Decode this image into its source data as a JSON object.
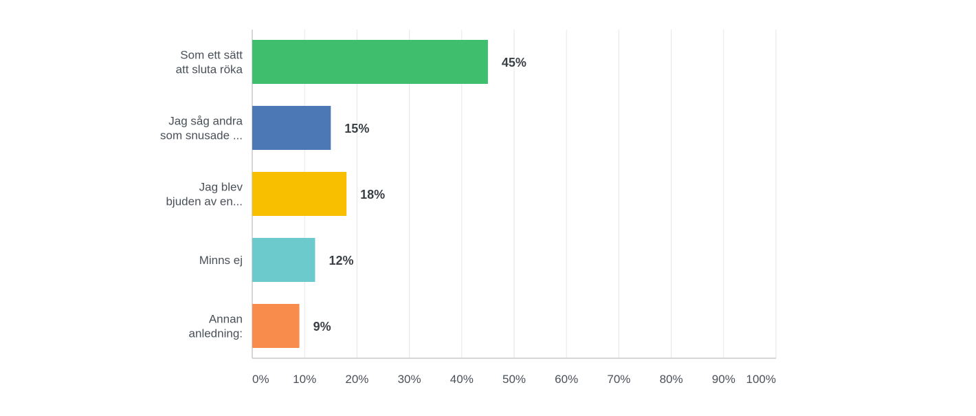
{
  "chart_data": {
    "type": "bar",
    "orientation": "horizontal",
    "categories": [
      [
        "Som ett sätt",
        "att sluta röka"
      ],
      [
        "Jag såg andra",
        "som snusade ..."
      ],
      [
        "Jag blev",
        "bjuden av en..."
      ],
      [
        "Minns ej"
      ],
      [
        "Annan",
        "anledning:"
      ]
    ],
    "values": [
      45,
      15,
      18,
      12,
      9
    ],
    "data_labels": [
      "45%",
      "15%",
      "18%",
      "12%",
      "9%"
    ],
    "colors": [
      "#3fbf6d",
      "#4c79b6",
      "#f8bf00",
      "#6ccacd",
      "#f78c4d"
    ],
    "xlim": [
      0,
      100
    ],
    "x_ticks": [
      "0%",
      "10%",
      "20%",
      "30%",
      "40%",
      "50%",
      "60%",
      "70%",
      "80%",
      "90%",
      "100%"
    ],
    "grid": true
  }
}
